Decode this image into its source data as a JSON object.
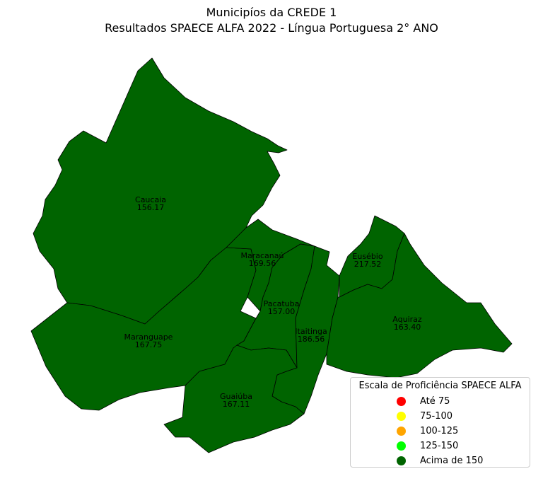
{
  "title": "Municipíos da CREDE 1",
  "subtitle": "Resultados SPAECE ALFA 2022 - Língua Portuguesa 2° ANO",
  "municipalities": [
    {
      "name": "Caucaia",
      "score": "156.17"
    },
    {
      "name": "Maracanaú",
      "score": "169.56"
    },
    {
      "name": "Eusébio",
      "score": "217.52"
    },
    {
      "name": "Pacatuba",
      "score": "157.00"
    },
    {
      "name": "Aquiraz",
      "score": "163.40"
    },
    {
      "name": "Itaitinga",
      "score": "186.56"
    },
    {
      "name": "Maranguape",
      "score": "167.75"
    },
    {
      "name": "Guaiúba",
      "score": "167.11"
    }
  ],
  "legend": {
    "title": "Escala de Proficiência SPAECE ALFA",
    "items": [
      {
        "label": "Até 75",
        "color": "#ff0000"
      },
      {
        "label": "75-100",
        "color": "#ffff00"
      },
      {
        "label": "100-125",
        "color": "#ffa500"
      },
      {
        "label": "125-150",
        "color": "#00ff00"
      },
      {
        "label": "Acima de 150",
        "color": "#006400"
      }
    ]
  },
  "fill_color": "#006400"
}
